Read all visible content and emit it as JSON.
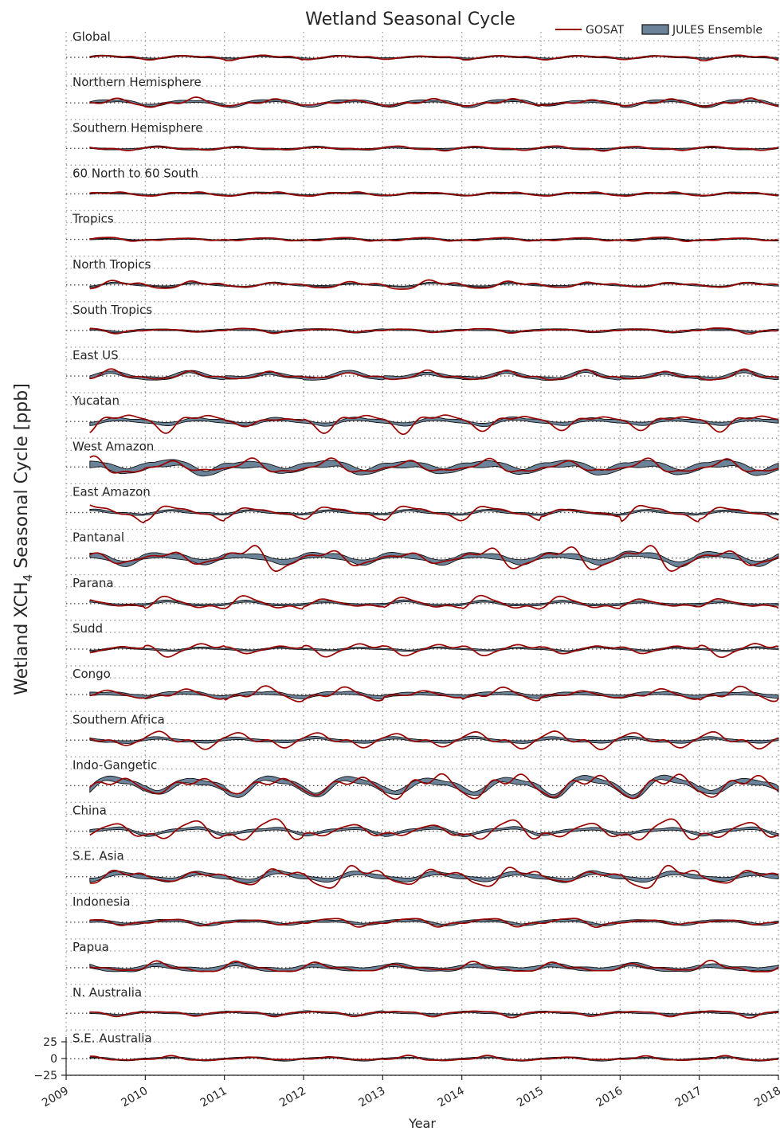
{
  "chart_data": {
    "type": "line",
    "title": "Wetland Seasonal Cycle",
    "xlabel": "Year",
    "ylabel": "Wetland XCH4 Seasonal Cycle [ppb]",
    "ylabel_main": "Wetland XCH",
    "ylabel_sub": "4",
    "ylabel_tail": " Seasonal Cycle [ppb]",
    "xlim": [
      2009,
      2018
    ],
    "x_ticks": [
      "2009",
      "2010",
      "2011",
      "2012",
      "2013",
      "2014",
      "2015",
      "2016",
      "2017",
      "2018"
    ],
    "y_ticks_bottom_panel": [
      "25",
      "0",
      "−25"
    ],
    "ylim_per_panel": [
      -25,
      25
    ],
    "grid": true,
    "legend_position": "top-right",
    "legend": [
      {
        "name": "GOSAT",
        "kind": "line",
        "color": "#990000"
      },
      {
        "name": "JULES Ensemble",
        "kind": "band",
        "color": "#6b8399"
      }
    ],
    "panels": [
      {
        "name": "Global",
        "gosat_amp": 3,
        "ens_amp": 2,
        "spread": 1.0,
        "peak": 0.55
      },
      {
        "name": "Northern Hemisphere",
        "gosat_amp": 5,
        "ens_amp": 4,
        "spread": 1.8,
        "peak": 0.6
      },
      {
        "name": "Southern Hemisphere",
        "gosat_amp": 2.5,
        "ens_amp": 2,
        "spread": 1.2,
        "peak": 0.2
      },
      {
        "name": "60 North to 60 South",
        "gosat_amp": 2.5,
        "ens_amp": 2,
        "spread": 1.0,
        "peak": 0.55
      },
      {
        "name": "Tropics",
        "gosat_amp": 2.5,
        "ens_amp": 1.5,
        "spread": 0.8,
        "peak": 0.5
      },
      {
        "name": "North Tropics",
        "gosat_amp": 5,
        "ens_amp": 2.5,
        "spread": 1.0,
        "peak": 0.7
      },
      {
        "name": "South Tropics",
        "gosat_amp": 3,
        "ens_amp": 2,
        "spread": 1.2,
        "peak": 0.2
      },
      {
        "name": "East US",
        "gosat_amp": 6,
        "ens_amp": 5,
        "spread": 2.5,
        "peak": 0.6
      },
      {
        "name": "Yucatan",
        "gosat_amp": 10,
        "ens_amp": 4,
        "spread": 2.5,
        "peak": 0.75
      },
      {
        "name": "West Amazon",
        "gosat_amp": 9,
        "ens_amp": 7,
        "spread": 5.0,
        "peak": 0.3
      },
      {
        "name": "East Amazon",
        "gosat_amp": 9,
        "ens_amp": 3,
        "spread": 1.5,
        "peak": 0.4
      },
      {
        "name": "Pantanal",
        "gosat_amp": 13,
        "ens_amp": 7,
        "spread": 4.0,
        "peak": 0.25
      },
      {
        "name": "Parana",
        "gosat_amp": 9,
        "ens_amp": 3,
        "spread": 1.5,
        "peak": 0.3
      },
      {
        "name": "Sudd",
        "gosat_amp": 7,
        "ens_amp": 2.5,
        "spread": 1.2,
        "peak": 0.8
      },
      {
        "name": "Congo",
        "gosat_amp": 8,
        "ens_amp": 3,
        "spread": 2.5,
        "peak": 0.5
      },
      {
        "name": "Southern Africa",
        "gosat_amp": 10,
        "ens_amp": 3,
        "spread": 2.0,
        "peak": 0.2
      },
      {
        "name": "Indo-Gangetic",
        "gosat_amp": 15,
        "ens_amp": 12,
        "spread": 4.0,
        "peak": 0.65
      },
      {
        "name": "China",
        "gosat_amp": 13,
        "ens_amp": 5,
        "spread": 2.0,
        "peak": 0.6
      },
      {
        "name": "S.E. Asia",
        "gosat_amp": 12,
        "ens_amp": 6,
        "spread": 3.0,
        "peak": 0.75
      },
      {
        "name": "Indonesia",
        "gosat_amp": 5,
        "ens_amp": 3,
        "spread": 1.8,
        "peak": 0.3
      },
      {
        "name": "Papua",
        "gosat_amp": 6,
        "ens_amp": 4,
        "spread": 3.0,
        "peak": 0.2
      },
      {
        "name": "N. Australia",
        "gosat_amp": 4,
        "ens_amp": 2.5,
        "spread": 1.2,
        "peak": 0.15
      },
      {
        "name": "S.E. Australia",
        "gosat_amp": 3,
        "ens_amp": 2,
        "spread": 1.0,
        "peak": 0.3
      }
    ],
    "x_start_data": 2009.3
  }
}
